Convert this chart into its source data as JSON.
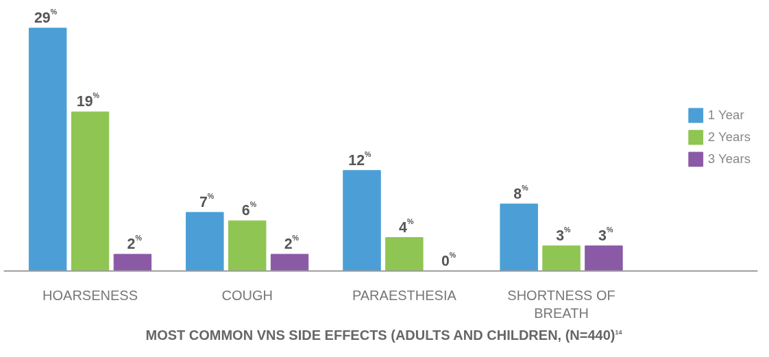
{
  "chart_data": {
    "type": "bar",
    "title": "MOST COMMON VNS SIDE EFFECTS (ADULTS AND CHILDREN, (N=440)$^{14}$",
    "categories": [
      "HOARSENESS",
      "COUGH",
      "PARAESTHESIA",
      "SHORTNESS OF BREATH"
    ],
    "series": [
      {
        "name": "1 Year",
        "color": "#4b9fd6",
        "values": [
          29,
          7,
          12,
          8
        ],
        "value_labels": [
          "29%",
          "7%",
          "12%",
          "8%"
        ]
      },
      {
        "name": "2 Years",
        "color": "#8fc552",
        "values": [
          19,
          6,
          4,
          3
        ],
        "value_labels": [
          "19%",
          "6%",
          "4%",
          "3%"
        ]
      },
      {
        "name": "3 Years",
        "color": "#8b5aa6",
        "values": [
          2,
          2,
          0,
          3
        ],
        "value_labels": [
          "2%",
          "2%",
          "0%",
          "3%"
        ]
      }
    ],
    "legend": "right",
    "grid": false
  }
}
